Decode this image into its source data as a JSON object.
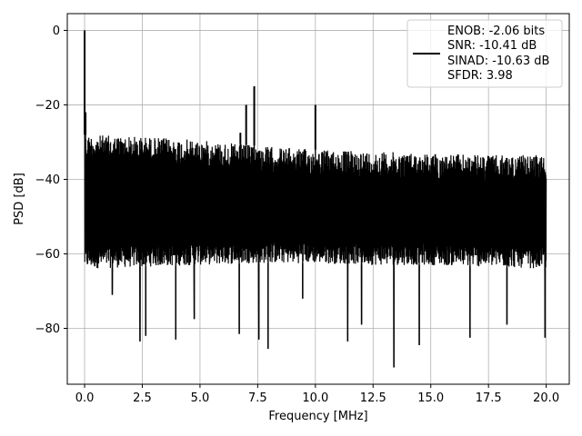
{
  "chart_data": {
    "type": "line",
    "xlabel": "Frequency [MHz]",
    "ylabel": "PSD [dB]",
    "xlim": [
      -0.75,
      21.0
    ],
    "ylim": [
      -95.0,
      4.5
    ],
    "x_ticks": [
      0.0,
      2.5,
      5.0,
      7.5,
      10.0,
      12.5,
      15.0,
      17.5,
      20.0
    ],
    "x_tick_labels": [
      "0.0",
      "2.5",
      "5.0",
      "7.5",
      "10.0",
      "12.5",
      "15.0",
      "17.5",
      "20.0"
    ],
    "y_ticks": [
      0,
      -20,
      -40,
      -60,
      -80
    ],
    "y_tick_labels": [
      "0",
      "−20",
      "−40",
      "−60",
      "−80"
    ],
    "grid": true,
    "legend_position": "top-right",
    "legend": {
      "lines": [
        "ENOB: -2.06 bits",
        "SNR: -10.41 dB",
        "SINAD: -10.63 dB",
        "SFDR: 3.98"
      ]
    },
    "series": [
      {
        "color": "#000000",
        "noise_floor": {
          "x": [
            0.0,
            2.5,
            5.0,
            7.5,
            10.0,
            12.5,
            15.0,
            17.5,
            20.0
          ],
          "upper": [
            -28,
            -28.5,
            -29.5,
            -31,
            -32,
            -32.5,
            -33,
            -33.5,
            -33.5
          ],
          "lower": [
            -64,
            -63.5,
            -63,
            -62.5,
            -62.5,
            -63,
            -63,
            -63.5,
            -64
          ]
        },
        "peaks": [
          {
            "x": 0.0,
            "y": 0.0
          },
          {
            "x": 0.04,
            "y": -22.0
          },
          {
            "x": 6.75,
            "y": -27.5
          },
          {
            "x": 7.0,
            "y": -20.0
          },
          {
            "x": 7.35,
            "y": -15.0
          },
          {
            "x": 10.0,
            "y": -20.0
          }
        ],
        "dips": [
          {
            "x": 1.2,
            "y": -71.0
          },
          {
            "x": 2.4,
            "y": -83.5
          },
          {
            "x": 2.65,
            "y": -82.0
          },
          {
            "x": 3.95,
            "y": -83.0
          },
          {
            "x": 4.75,
            "y": -77.5
          },
          {
            "x": 6.7,
            "y": -81.5
          },
          {
            "x": 7.55,
            "y": -83.0
          },
          {
            "x": 7.95,
            "y": -85.5
          },
          {
            "x": 9.45,
            "y": -72.0
          },
          {
            "x": 11.4,
            "y": -83.5
          },
          {
            "x": 12.0,
            "y": -79.0
          },
          {
            "x": 13.4,
            "y": -90.5
          },
          {
            "x": 14.5,
            "y": -84.5
          },
          {
            "x": 16.7,
            "y": -82.5
          },
          {
            "x": 18.3,
            "y": -79.0
          },
          {
            "x": 19.95,
            "y": -82.5
          }
        ]
      }
    ]
  }
}
